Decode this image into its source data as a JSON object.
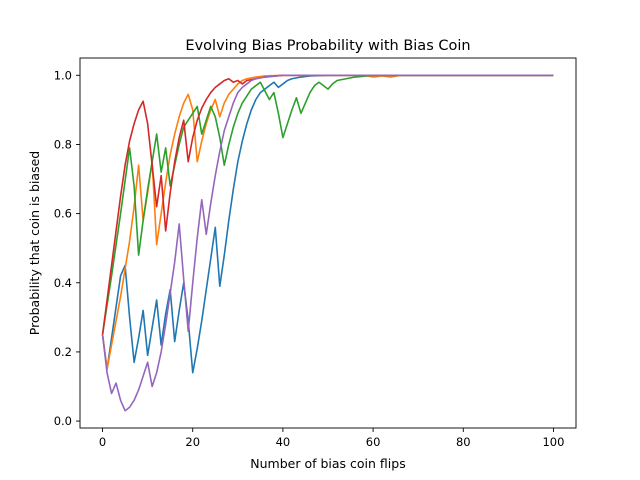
{
  "chart_data": {
    "type": "line",
    "title": "Evolving Bias Probability with Bias Coin",
    "xlabel": "Number of bias coin flips",
    "ylabel": "Probability that coin is biased",
    "xlim": [
      -5,
      105
    ],
    "ylim": [
      -0.02,
      1.05
    ],
    "xticks": [
      0,
      20,
      40,
      60,
      80,
      100
    ],
    "yticks": [
      0.0,
      0.2,
      0.4,
      0.6,
      0.8,
      1.0
    ],
    "xtick_labels": [
      "0",
      "20",
      "40",
      "60",
      "80",
      "100"
    ],
    "ytick_labels": [
      "0.0",
      "0.2",
      "0.4",
      "0.6",
      "0.8",
      "1.0"
    ],
    "grid": false,
    "legend": false,
    "series": [
      {
        "color": "#1f77b4",
        "points": [
          [
            0,
            0.25
          ],
          [
            1,
            0.15
          ],
          [
            2,
            0.24
          ],
          [
            3,
            0.33
          ],
          [
            4,
            0.42
          ],
          [
            5,
            0.45
          ],
          [
            6,
            0.3
          ],
          [
            7,
            0.17
          ],
          [
            8,
            0.24
          ],
          [
            9,
            0.32
          ],
          [
            10,
            0.19
          ],
          [
            11,
            0.27
          ],
          [
            12,
            0.35
          ],
          [
            13,
            0.22
          ],
          [
            14,
            0.31
          ],
          [
            15,
            0.38
          ],
          [
            16,
            0.23
          ],
          [
            17,
            0.32
          ],
          [
            18,
            0.4
          ],
          [
            19,
            0.29
          ],
          [
            20,
            0.14
          ],
          [
            21,
            0.21
          ],
          [
            22,
            0.29
          ],
          [
            23,
            0.38
          ],
          [
            24,
            0.47
          ],
          [
            25,
            0.56
          ],
          [
            26,
            0.39
          ],
          [
            27,
            0.48
          ],
          [
            28,
            0.58
          ],
          [
            29,
            0.67
          ],
          [
            30,
            0.75
          ],
          [
            31,
            0.81
          ],
          [
            32,
            0.86
          ],
          [
            33,
            0.9
          ],
          [
            34,
            0.93
          ],
          [
            35,
            0.95
          ],
          [
            36,
            0.96
          ],
          [
            37,
            0.97
          ],
          [
            38,
            0.98
          ],
          [
            39,
            0.965
          ],
          [
            40,
            0.975
          ],
          [
            41,
            0.985
          ],
          [
            42,
            0.99
          ],
          [
            44,
            0.995
          ],
          [
            46,
            0.998
          ],
          [
            50,
            1.0
          ],
          [
            100,
            1.0
          ]
        ]
      },
      {
        "color": "#ff7f0e",
        "points": [
          [
            0,
            0.25
          ],
          [
            1,
            0.15
          ],
          [
            2,
            0.22
          ],
          [
            3,
            0.29
          ],
          [
            4,
            0.36
          ],
          [
            5,
            0.44
          ],
          [
            6,
            0.52
          ],
          [
            7,
            0.62
          ],
          [
            8,
            0.74
          ],
          [
            9,
            0.58
          ],
          [
            10,
            0.66
          ],
          [
            11,
            0.75
          ],
          [
            12,
            0.51
          ],
          [
            13,
            0.6
          ],
          [
            14,
            0.69
          ],
          [
            15,
            0.77
          ],
          [
            16,
            0.83
          ],
          [
            17,
            0.88
          ],
          [
            18,
            0.92
          ],
          [
            19,
            0.945
          ],
          [
            20,
            0.9
          ],
          [
            21,
            0.75
          ],
          [
            22,
            0.81
          ],
          [
            23,
            0.86
          ],
          [
            24,
            0.9
          ],
          [
            25,
            0.93
          ],
          [
            26,
            0.88
          ],
          [
            27,
            0.92
          ],
          [
            28,
            0.945
          ],
          [
            29,
            0.96
          ],
          [
            30,
            0.975
          ],
          [
            31,
            0.985
          ],
          [
            32,
            0.99
          ],
          [
            34,
            0.995
          ],
          [
            36,
            0.998
          ],
          [
            40,
            1.0
          ],
          [
            58,
            1.0
          ],
          [
            60,
            0.995
          ],
          [
            62,
            0.998
          ],
          [
            64,
            0.995
          ],
          [
            66,
            1.0
          ],
          [
            100,
            1.0
          ]
        ]
      },
      {
        "color": "#2ca02c",
        "points": [
          [
            0,
            0.25
          ],
          [
            2,
            0.42
          ],
          [
            4,
            0.6
          ],
          [
            6,
            0.79
          ],
          [
            7,
            0.68
          ],
          [
            8,
            0.48
          ],
          [
            9,
            0.58
          ],
          [
            10,
            0.67
          ],
          [
            11,
            0.75
          ],
          [
            12,
            0.83
          ],
          [
            13,
            0.72
          ],
          [
            14,
            0.79
          ],
          [
            15,
            0.68
          ],
          [
            16,
            0.74
          ],
          [
            17,
            0.8
          ],
          [
            18,
            0.85
          ],
          [
            19,
            0.87
          ],
          [
            20,
            0.89
          ],
          [
            21,
            0.91
          ],
          [
            22,
            0.83
          ],
          [
            23,
            0.87
          ],
          [
            24,
            0.91
          ],
          [
            25,
            0.88
          ],
          [
            26,
            0.82
          ],
          [
            27,
            0.74
          ],
          [
            28,
            0.8
          ],
          [
            29,
            0.85
          ],
          [
            30,
            0.89
          ],
          [
            31,
            0.92
          ],
          [
            32,
            0.94
          ],
          [
            33,
            0.96
          ],
          [
            34,
            0.97
          ],
          [
            35,
            0.98
          ],
          [
            36,
            0.955
          ],
          [
            37,
            0.93
          ],
          [
            38,
            0.95
          ],
          [
            39,
            0.89
          ],
          [
            40,
            0.82
          ],
          [
            41,
            0.86
          ],
          [
            42,
            0.9
          ],
          [
            43,
            0.935
          ],
          [
            44,
            0.89
          ],
          [
            45,
            0.92
          ],
          [
            46,
            0.95
          ],
          [
            47,
            0.97
          ],
          [
            48,
            0.98
          ],
          [
            49,
            0.97
          ],
          [
            50,
            0.96
          ],
          [
            51,
            0.975
          ],
          [
            52,
            0.985
          ],
          [
            54,
            0.99
          ],
          [
            56,
            0.995
          ],
          [
            60,
            1.0
          ],
          [
            100,
            1.0
          ]
        ]
      },
      {
        "color": "#d62728",
        "points": [
          [
            0,
            0.25
          ],
          [
            1,
            0.35
          ],
          [
            2,
            0.45
          ],
          [
            3,
            0.55
          ],
          [
            4,
            0.65
          ],
          [
            5,
            0.74
          ],
          [
            6,
            0.81
          ],
          [
            7,
            0.86
          ],
          [
            8,
            0.9
          ],
          [
            9,
            0.925
          ],
          [
            10,
            0.86
          ],
          [
            11,
            0.74
          ],
          [
            12,
            0.62
          ],
          [
            13,
            0.71
          ],
          [
            14,
            0.55
          ],
          [
            15,
            0.66
          ],
          [
            16,
            0.75
          ],
          [
            17,
            0.82
          ],
          [
            18,
            0.87
          ],
          [
            19,
            0.75
          ],
          [
            20,
            0.82
          ],
          [
            21,
            0.87
          ],
          [
            22,
            0.905
          ],
          [
            23,
            0.93
          ],
          [
            24,
            0.95
          ],
          [
            25,
            0.965
          ],
          [
            26,
            0.975
          ],
          [
            27,
            0.985
          ],
          [
            28,
            0.99
          ],
          [
            29,
            0.98
          ],
          [
            30,
            0.985
          ],
          [
            31,
            0.975
          ],
          [
            32,
            0.985
          ],
          [
            34,
            0.99
          ],
          [
            36,
            0.995
          ],
          [
            40,
            1.0
          ],
          [
            100,
            1.0
          ]
        ]
      },
      {
        "color": "#9467bd",
        "points": [
          [
            0,
            0.25
          ],
          [
            1,
            0.14
          ],
          [
            2,
            0.08
          ],
          [
            3,
            0.11
          ],
          [
            4,
            0.06
          ],
          [
            5,
            0.03
          ],
          [
            6,
            0.04
          ],
          [
            7,
            0.06
          ],
          [
            8,
            0.09
          ],
          [
            9,
            0.13
          ],
          [
            10,
            0.17
          ],
          [
            11,
            0.1
          ],
          [
            12,
            0.14
          ],
          [
            13,
            0.2
          ],
          [
            14,
            0.28
          ],
          [
            15,
            0.37
          ],
          [
            16,
            0.46
          ],
          [
            17,
            0.57
          ],
          [
            18,
            0.41
          ],
          [
            19,
            0.26
          ],
          [
            20,
            0.4
          ],
          [
            21,
            0.53
          ],
          [
            22,
            0.64
          ],
          [
            23,
            0.54
          ],
          [
            24,
            0.63
          ],
          [
            25,
            0.71
          ],
          [
            26,
            0.78
          ],
          [
            27,
            0.84
          ],
          [
            28,
            0.88
          ],
          [
            29,
            0.92
          ],
          [
            30,
            0.95
          ],
          [
            31,
            0.965
          ],
          [
            32,
            0.975
          ],
          [
            33,
            0.985
          ],
          [
            34,
            0.99
          ],
          [
            36,
            0.995
          ],
          [
            40,
            1.0
          ],
          [
            100,
            1.0
          ]
        ]
      }
    ]
  }
}
